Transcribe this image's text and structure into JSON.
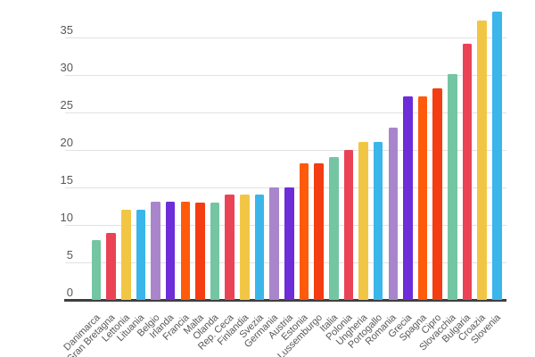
{
  "chart_data": {
    "type": "bar",
    "title": "",
    "categories": [
      "Danimarca",
      "Gran Bretagna",
      "Lettonia",
      "Lituania",
      "Belgio",
      "Irlanda",
      "Francia",
      "Malta",
      "Olanda",
      "Rep. Ceca",
      "Finlandia",
      "Svezia",
      "Germania",
      "Austria",
      "Estonia",
      "Lussemburgo",
      "Italia",
      "Polonia",
      "Ungheria",
      "Portogallo",
      "Romania",
      "Grecia",
      "Spagna",
      "Cipro",
      "Slovacchia",
      "Bulgaria",
      "Croazia",
      "Slovenia"
    ],
    "values": [
      8.0,
      8.9,
      12.0,
      12.0,
      13.1,
      13.1,
      13.1,
      13.0,
      13.0,
      14.0,
      14.0,
      14.1,
      15.0,
      15.0,
      18.2,
      18.2,
      19.0,
      20.0,
      21.1,
      21.1,
      23.0,
      27.2,
      27.2,
      28.2,
      30.1,
      34.2,
      37.3,
      38.4
    ],
    "palette": [
      "#74C5A2",
      "#EA4356",
      "#F2C645",
      "#3AB6EA",
      "#A986CB",
      "#6D2DD8",
      "#FF5B0A",
      "#F43D12"
    ],
    "y_ticks": [
      0,
      5,
      10,
      15,
      20,
      25,
      30,
      35
    ],
    "ylim": [
      0,
      40
    ],
    "grid": true,
    "legend_position": "none",
    "background": "#FFFFFF",
    "axis_color": "#3F3F3F",
    "gridline_color": "#E2E2E2",
    "tick_label_color": "#585858",
    "x_labels_rotation_deg": -45
  }
}
